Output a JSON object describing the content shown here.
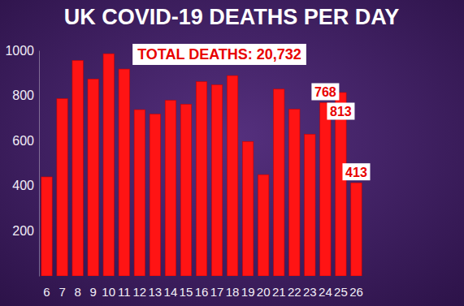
{
  "chart_data": {
    "type": "bar",
    "title": "UK COVID-19 DEATHS PER DAY",
    "annotation": "TOTAL DEATHS: 20,732",
    "categories": [
      "6",
      "7",
      "8",
      "9",
      "10",
      "11",
      "12",
      "13",
      "14",
      "15",
      "16",
      "17",
      "18",
      "19",
      "20",
      "21",
      "22",
      "23",
      "24",
      "25",
      "26"
    ],
    "values": [
      439,
      786,
      955,
      873,
      985,
      917,
      737,
      717,
      778,
      761,
      861,
      847,
      888,
      596,
      449,
      828,
      739,
      628,
      768,
      813,
      413
    ],
    "value_labels": [
      null,
      null,
      null,
      null,
      null,
      null,
      null,
      null,
      null,
      null,
      null,
      null,
      null,
      null,
      null,
      null,
      null,
      null,
      "768",
      "813",
      "413"
    ],
    "data_labels": true,
    "color": "#ff1414",
    "ylim": [
      0,
      1000
    ],
    "yticks": [
      200,
      400,
      600,
      800,
      1000
    ],
    "grid": false
  }
}
